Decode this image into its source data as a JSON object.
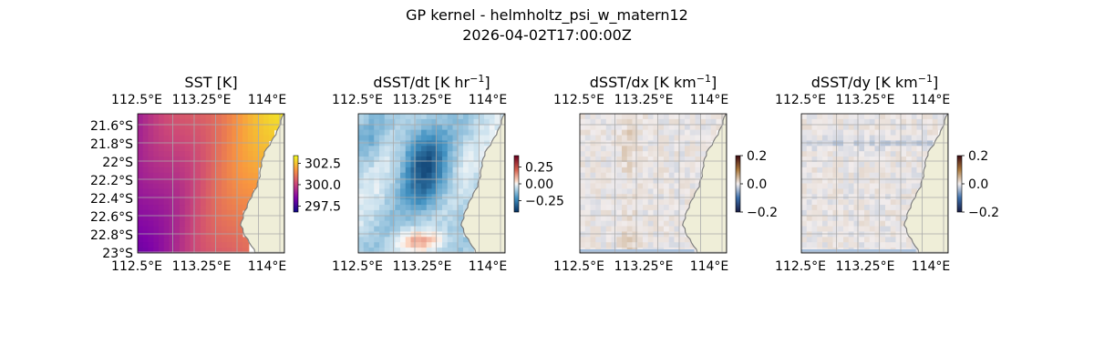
{
  "figure": {
    "title_line1": "GP kernel - helmholtz_psi_w_matern12",
    "title_line2": "2026-04-02T17:00:00Z"
  },
  "colors": {
    "land": "#efeed8",
    "coast": "#7f7f7f",
    "ocean_edge": "#a6bfdc",
    "grid": "#aaaaaa"
  },
  "chart_data": [
    {
      "type": "heatmap",
      "title": "SST [K]",
      "title_base": "SST [K]",
      "title_sup": "",
      "title_tail": "",
      "colormap": "plasma",
      "x_ticks_top": [
        "112.5°E",
        "113.25°E",
        "114°E"
      ],
      "x_ticks_bottom": [
        "112.5°E",
        "113.25°E",
        "114°E"
      ],
      "y_ticks": [
        "21.6°S",
        "21.8°S",
        "22°S",
        "22.2°S",
        "22.4°S",
        "22.6°S",
        "22.8°S",
        "23°S"
      ],
      "xlim": [
        112.5,
        114.25
      ],
      "ylim": [
        -23.05,
        -21.5
      ],
      "colorbar": {
        "ticks": [
          "302.5",
          "300.0",
          "297.5"
        ],
        "range": [
          296.8,
          303.4
        ]
      }
    },
    {
      "type": "heatmap",
      "title": "dSST/dt [K hr−1]",
      "title_base": "dSST/dt [K hr",
      "title_sup": "−1",
      "title_tail": "]",
      "colormap": "RdBu_r",
      "x_ticks_top": [
        "112.5°E",
        "113.25°E",
        "114°E"
      ],
      "x_ticks_bottom": [
        "112.5°E",
        "113.25°E",
        "114°E"
      ],
      "y_ticks": [],
      "xlim": [
        112.5,
        114.25
      ],
      "ylim": [
        -23.05,
        -21.5
      ],
      "colorbar": {
        "ticks": [
          "0.25",
          "0.00",
          "−0.25"
        ],
        "range": [
          -0.42,
          0.42
        ]
      }
    },
    {
      "type": "heatmap",
      "title": "dSST/dx [K km−1]",
      "title_base": "dSST/dx [K km",
      "title_sup": "−1",
      "title_tail": "]",
      "colormap": "balance",
      "x_ticks_top": [
        "112.5°E",
        "113.25°E",
        "114°E"
      ],
      "x_ticks_bottom": [
        "112.5°E",
        "113.25°E",
        "114°E"
      ],
      "y_ticks": [],
      "xlim": [
        112.5,
        114.25
      ],
      "ylim": [
        -23.05,
        -21.5
      ],
      "colorbar": {
        "ticks": [
          "0.2",
          "0.0",
          "−0.2"
        ],
        "range": [
          -0.2,
          0.2
        ]
      }
    },
    {
      "type": "heatmap",
      "title": "dSST/dy [K km−1]",
      "title_base": "dSST/dy [K km",
      "title_sup": "−1",
      "title_tail": "]",
      "colormap": "balance",
      "x_ticks_top": [
        "112.5°E",
        "113.25°E",
        "114°E"
      ],
      "x_ticks_bottom": [
        "112.5°E",
        "113.25°E",
        "114°E"
      ],
      "y_ticks": [],
      "xlim": [
        112.5,
        114.25
      ],
      "ylim": [
        -23.05,
        -21.5
      ],
      "colorbar": {
        "ticks": [
          "0.2",
          "0.0",
          "−0.2"
        ],
        "range": [
          -0.2,
          0.2
        ]
      }
    }
  ]
}
